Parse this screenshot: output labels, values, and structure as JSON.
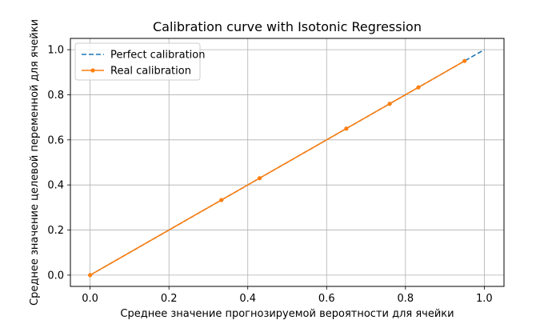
{
  "chart_data": {
    "type": "line",
    "title": "Calibration curve with Isotonic Regression",
    "xlabel": "Среднее значение прогнозируемой вероятности для ячейки",
    "ylabel": "Среднее значение целевой переменной для ячейки",
    "xlim": [
      -0.05,
      1.05
    ],
    "ylim": [
      -0.05,
      1.05
    ],
    "xticks": [
      0.0,
      0.2,
      0.4,
      0.6,
      0.8,
      1.0
    ],
    "xtick_labels": [
      "0.0",
      "0.2",
      "0.4",
      "0.6",
      "0.8",
      "1.0"
    ],
    "yticks": [
      0.0,
      0.2,
      0.4,
      0.6,
      0.8,
      1.0
    ],
    "ytick_labels": [
      "0.0",
      "0.2",
      "0.4",
      "0.6",
      "0.8",
      "1.0"
    ],
    "grid": true,
    "legend_position": "top-left",
    "series": [
      {
        "name": "Perfect calibration",
        "style": "dashed",
        "marker": "none",
        "color": "#1f77b4",
        "x": [
          0.0,
          1.0
        ],
        "y": [
          0.0,
          1.0
        ]
      },
      {
        "name": "Real calibration",
        "style": "solid",
        "marker": "circle",
        "color": "#ff7f0e",
        "x": [
          0.0,
          0.333,
          0.43,
          0.65,
          0.76,
          0.833,
          0.95
        ],
        "y": [
          0.0,
          0.333,
          0.43,
          0.65,
          0.76,
          0.833,
          0.95
        ]
      }
    ]
  }
}
